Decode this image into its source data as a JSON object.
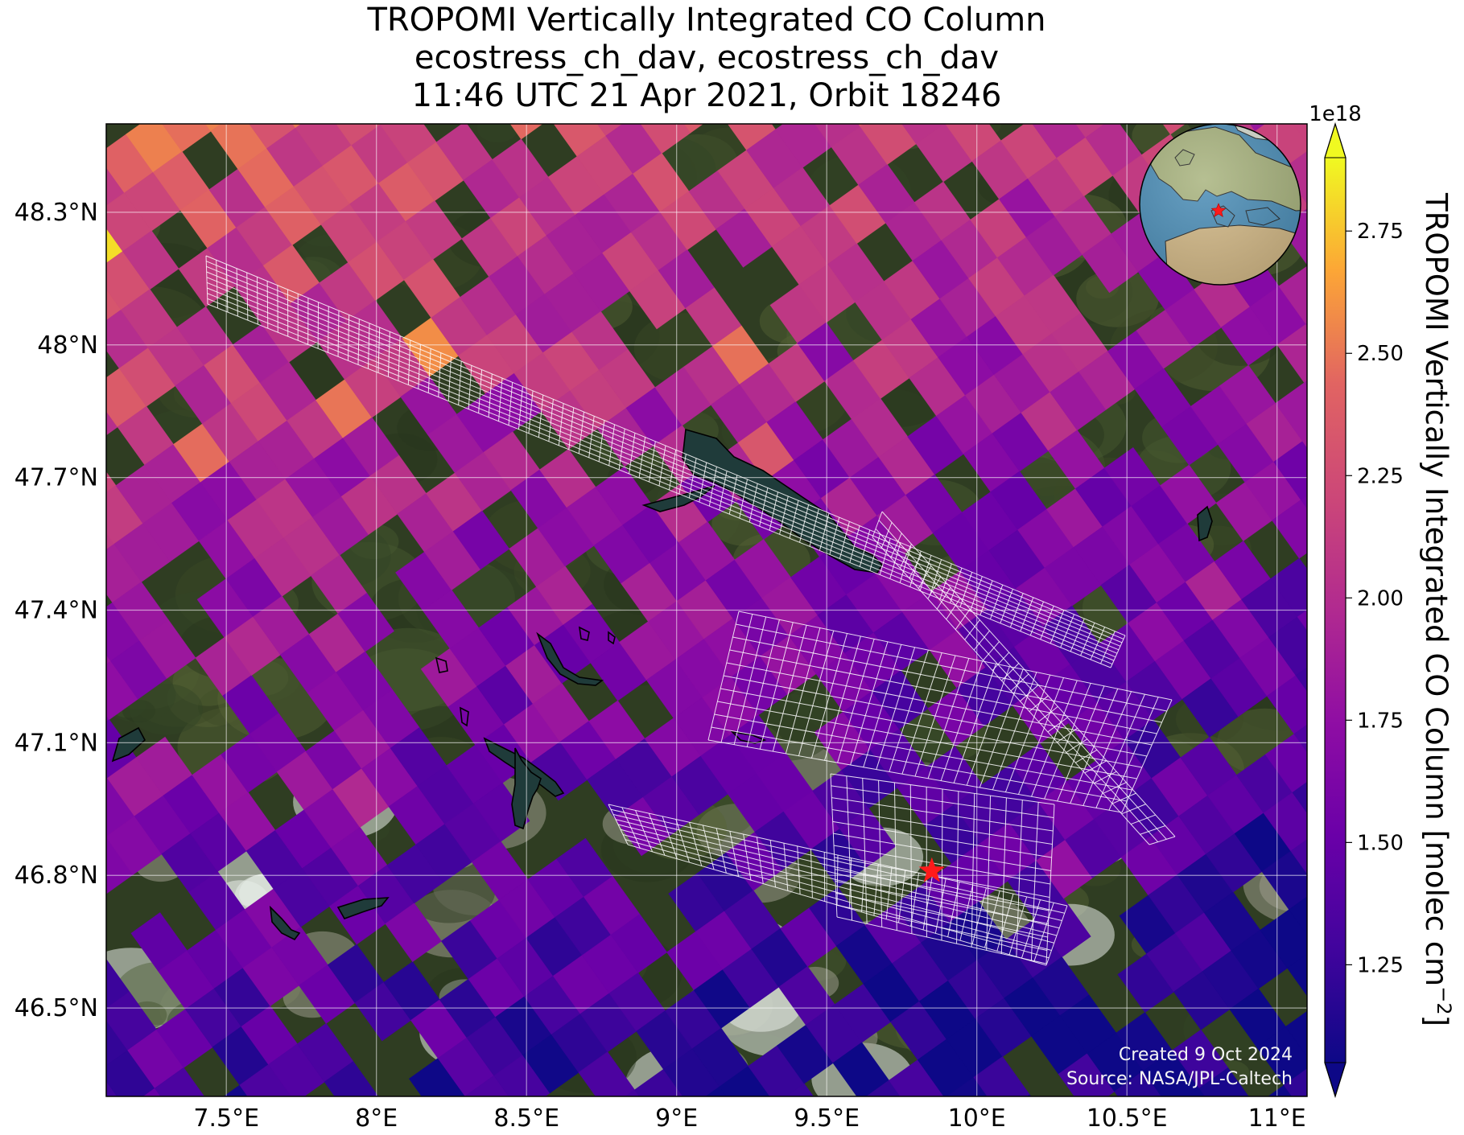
{
  "title": {
    "line1": "TROPOMI Vertically Integrated CO Column",
    "line2": "ecostress_ch_dav, ecostress_ch_dav",
    "line3": "11:46 UTC 21 Apr 2021, Orbit 18246"
  },
  "map": {
    "lon_range": [
      7.1,
      11.1
    ],
    "lat_range": [
      46.3,
      48.5
    ],
    "lon_ticks": [
      {
        "value": 7.5,
        "label": "7.5°E"
      },
      {
        "value": 8.0,
        "label": "8°E"
      },
      {
        "value": 8.5,
        "label": "8.5°E"
      },
      {
        "value": 9.0,
        "label": "9°E"
      },
      {
        "value": 9.5,
        "label": "9.5°E"
      },
      {
        "value": 10.0,
        "label": "10°E"
      },
      {
        "value": 10.5,
        "label": "10.5°E"
      },
      {
        "value": 11.0,
        "label": "11°E"
      }
    ],
    "lat_ticks": [
      {
        "value": 48.3,
        "label": "48.3°N"
      },
      {
        "value": 48.0,
        "label": "48°N"
      },
      {
        "value": 47.7,
        "label": "47.7°N"
      },
      {
        "value": 47.4,
        "label": "47.4°N"
      },
      {
        "value": 47.1,
        "label": "47.1°N"
      },
      {
        "value": 46.8,
        "label": "46.8°N"
      },
      {
        "value": 46.5,
        "label": "46.5°N"
      }
    ],
    "gridlines": true,
    "basemap": "satellite imagery",
    "overlay": "TROPOMI CO pixels, plasma colormap",
    "site_marker": {
      "lon": 9.85,
      "lat": 46.81,
      "symbol": "star",
      "color": "#ff1a1a"
    },
    "ecostress_footprints": "white grid outlines",
    "inset_globe": {
      "marker_color": "#ff1a1a"
    }
  },
  "colorbar": {
    "label": "TROPOMI Vertically Integrated CO Column [molec cm",
    "label_exponent": "−2",
    "label_close": "]",
    "multiplier": "1e18",
    "colormap": "plasma",
    "range": [
      1.05,
      2.9
    ],
    "extend": "both",
    "ticks": [
      {
        "value": 1.25,
        "label": "1.25"
      },
      {
        "value": 1.5,
        "label": "1.50"
      },
      {
        "value": 1.75,
        "label": "1.75"
      },
      {
        "value": 2.0,
        "label": "2.00"
      },
      {
        "value": 2.25,
        "label": "2.25"
      },
      {
        "value": 2.5,
        "label": "2.50"
      },
      {
        "value": 2.75,
        "label": "2.75"
      }
    ]
  },
  "credits": {
    "created": "Created 9 Oct 2024",
    "source": "Source: NASA/JPL-Caltech"
  }
}
